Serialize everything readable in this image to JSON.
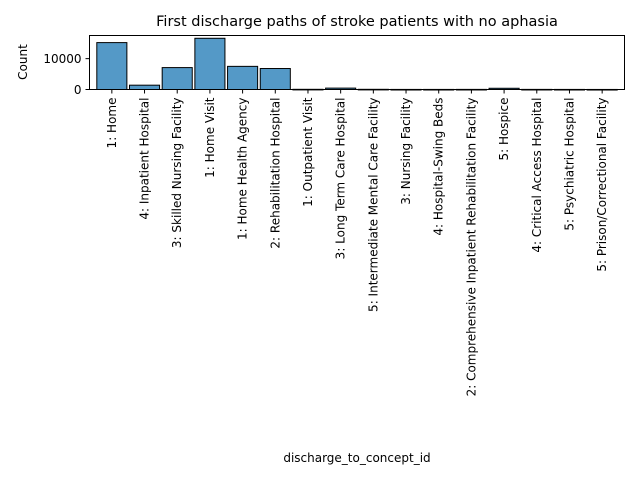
{
  "chart_data": {
    "type": "bar",
    "title": "First discharge paths of stroke patients with no aphasia",
    "xlabel": "discharge_to_concept_id",
    "ylabel": "Count",
    "ylim": [
      0,
      17500
    ],
    "yticks": [
      0,
      10000
    ],
    "grid": false,
    "categories": [
      "1: Home",
      "4: Inpatient Hospital",
      "3: Skilled Nursing Facility",
      "1: Home Visit",
      "1: Home Health Agency",
      "2: Rehabilitation Hospital",
      "1: Outpatient Visit",
      "3: Long Term Care Hospital",
      "5: Intermediate Mental Care Facility",
      "3: Nursing Facility",
      "4: Hospital-Swing Beds",
      "2: Comprehensive Inpatient Rehabilitation Facility",
      "5: Hospice",
      "4: Critical Access Hospital",
      "5: Psychiatric Hospital",
      "5: Prison/Correctional Facility"
    ],
    "values": [
      15200,
      1400,
      7100,
      16600,
      7500,
      6800,
      60,
      450,
      60,
      30,
      30,
      40,
      400,
      40,
      30,
      20
    ],
    "bar_color": "#5499c7",
    "edge_color": "#000000"
  }
}
